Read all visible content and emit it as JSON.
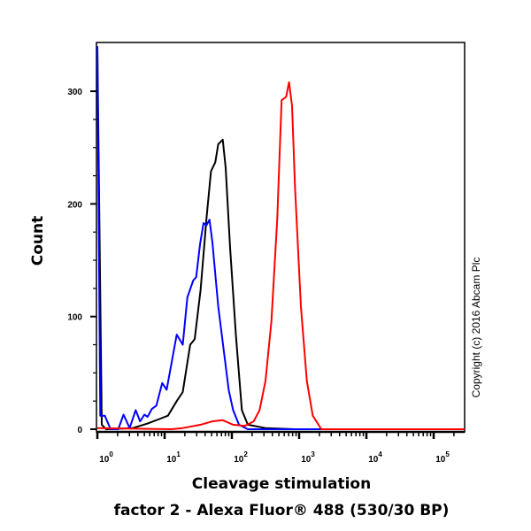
{
  "chart_data": {
    "type": "line",
    "title": "",
    "xlabel_line1": "Cleavage stimulation",
    "xlabel_line2": "factor 2 - Alexa Fluor® 488 (530/30 BP)",
    "ylabel": "Count",
    "x_scale": "log",
    "xlim": [
      1,
      290000
    ],
    "ylim": [
      0,
      343
    ],
    "x_ticks": [
      {
        "base": "10",
        "exp": "0",
        "value": 1
      },
      {
        "base": "10",
        "exp": "1",
        "value": 10
      },
      {
        "base": "10",
        "exp": "2",
        "value": 100
      },
      {
        "base": "10",
        "exp": "3",
        "value": 1000
      },
      {
        "base": "10",
        "exp": "4",
        "value": 10000
      },
      {
        "base": "10",
        "exp": "5",
        "value": 100000
      }
    ],
    "y_ticks": [
      0,
      100,
      200,
      300
    ],
    "grid": false,
    "legend": "none",
    "series": [
      {
        "color": "#000000",
        "points_log10x": [
          [
            0,
            340
          ],
          [
            0.066,
            4
          ],
          [
            0.13,
            0
          ],
          [
            0.526,
            1
          ],
          [
            0.746,
            5
          ],
          [
            0.921,
            9
          ],
          [
            1.05,
            12
          ],
          [
            1.18,
            25
          ],
          [
            1.27,
            33
          ],
          [
            1.38,
            75
          ],
          [
            1.447,
            80
          ],
          [
            1.535,
            124
          ],
          [
            1.623,
            187
          ],
          [
            1.689,
            229
          ],
          [
            1.754,
            237
          ],
          [
            1.798,
            253
          ],
          [
            1.864,
            257
          ],
          [
            1.908,
            232
          ],
          [
            1.974,
            161
          ],
          [
            2.061,
            83
          ],
          [
            2.149,
            17
          ],
          [
            2.237,
            4
          ],
          [
            2.5,
            1
          ],
          [
            2.94,
            0
          ],
          [
            5.46,
            0
          ]
        ]
      },
      {
        "color": "#0000ff",
        "points_log10x": [
          [
            0,
            340
          ],
          [
            0.044,
            12
          ],
          [
            0.11,
            12
          ],
          [
            0.197,
            0
          ],
          [
            0.31,
            0
          ],
          [
            0.39,
            13
          ],
          [
            0.48,
            1
          ],
          [
            0.57,
            17
          ],
          [
            0.636,
            7
          ],
          [
            0.7,
            13
          ],
          [
            0.746,
            11
          ],
          [
            0.81,
            18
          ],
          [
            0.877,
            21
          ],
          [
            0.965,
            41
          ],
          [
            1.03,
            35
          ],
          [
            1.18,
            84
          ],
          [
            1.27,
            75
          ],
          [
            1.338,
            117
          ],
          [
            1.425,
            132
          ],
          [
            1.47,
            135
          ],
          [
            1.526,
            164
          ],
          [
            1.579,
            183
          ],
          [
            1.623,
            181
          ],
          [
            1.667,
            186
          ],
          [
            1.71,
            166
          ],
          [
            1.798,
            109
          ],
          [
            1.886,
            67
          ],
          [
            1.952,
            35
          ],
          [
            2.018,
            17
          ],
          [
            2.105,
            4
          ],
          [
            2.237,
            0
          ],
          [
            5.46,
            0
          ]
        ]
      },
      {
        "color": "#ff0000",
        "points_log10x": [
          [
            0,
            1
          ],
          [
            1.096,
            0
          ],
          [
            1.27,
            1
          ],
          [
            1.535,
            4
          ],
          [
            1.71,
            7
          ],
          [
            1.864,
            8
          ],
          [
            2.018,
            4
          ],
          [
            2.193,
            3
          ],
          [
            2.325,
            7
          ],
          [
            2.412,
            17
          ],
          [
            2.5,
            43
          ],
          [
            2.588,
            96
          ],
          [
            2.675,
            187
          ],
          [
            2.74,
            292
          ],
          [
            2.807,
            295
          ],
          [
            2.85,
            308
          ],
          [
            2.895,
            287
          ],
          [
            2.939,
            214
          ],
          [
            3.026,
            109
          ],
          [
            3.114,
            43
          ],
          [
            3.202,
            12
          ],
          [
            3.33,
            0
          ],
          [
            5.46,
            0
          ]
        ]
      }
    ]
  },
  "copyright": "Copyright (c) 2016 Abcam Plc"
}
